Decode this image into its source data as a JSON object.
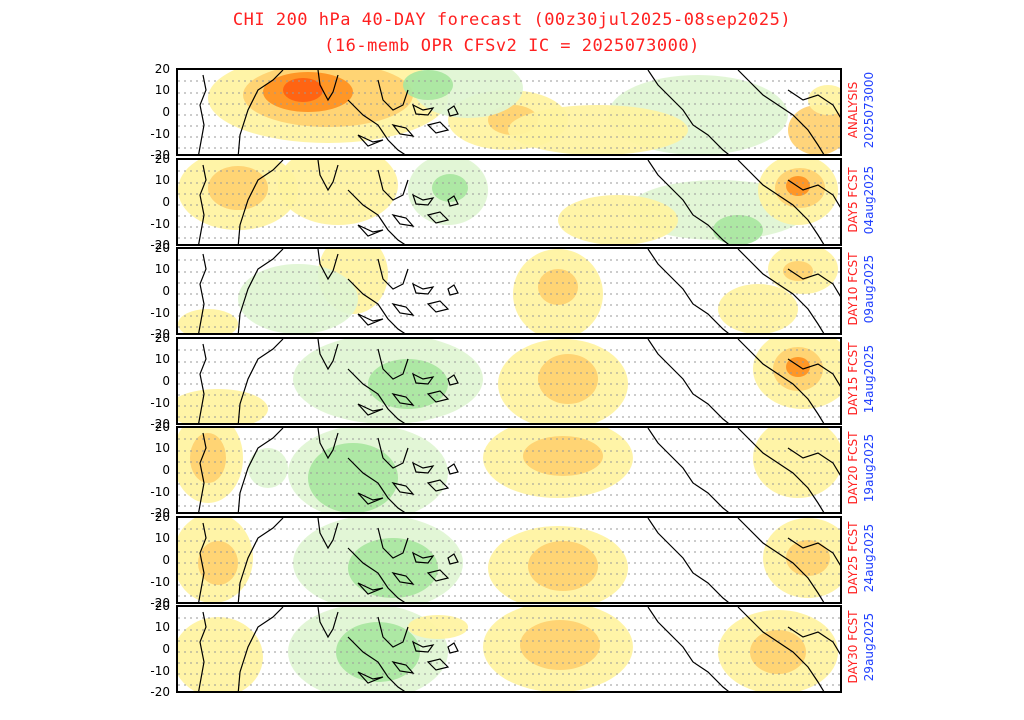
{
  "title_line1": "CHI 200 hPa 40-DAY forecast (00z30jul2025-08sep2025)",
  "title_line2": "(16-memb OPR CFSv2 IC = 2025073000)",
  "y_ticks": [
    "20",
    "10",
    "0",
    "-10",
    "-20"
  ],
  "colors": {
    "title": "#ff2020",
    "lead": "#ff2020",
    "date": "#2040ff",
    "pos_light": "#fff3a0",
    "pos_mid": "#ffd070",
    "pos_dark": "#ff9020",
    "pos_core": "#ff6010",
    "neg_light": "#dff5d2",
    "neg_mid": "#a8e6a0",
    "neg_dark": "#50d060"
  },
  "panels": [
    {
      "lead": "ANALYSIS",
      "date": "2025073000"
    },
    {
      "lead": "DAY5 FCST",
      "date": "04aug2025"
    },
    {
      "lead": "DAY10 FCST",
      "date": "09aug2025"
    },
    {
      "lead": "DAY15 FCST",
      "date": "14aug2025"
    },
    {
      "lead": "DAY20 FCST",
      "date": "19aug2025"
    },
    {
      "lead": "DAY25 FCST",
      "date": "24aug2025"
    },
    {
      "lead": "DAY30 FCST",
      "date": "29aug2025"
    }
  ]
}
